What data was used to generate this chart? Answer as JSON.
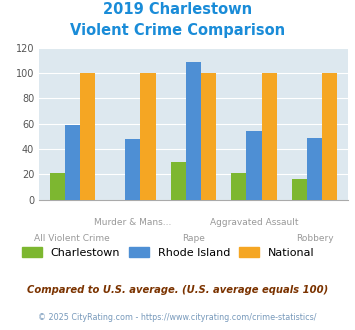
{
  "title_line1": "2019 Charlestown",
  "title_line2": "Violent Crime Comparison",
  "categories": [
    "All Violent Crime",
    "Murder & Mans...",
    "Rape",
    "Aggravated Assault",
    "Robbery"
  ],
  "top_labels": [
    "",
    "Murder & Mans...",
    "",
    "Aggravated Assault",
    ""
  ],
  "bot_labels": [
    "All Violent Crime",
    "",
    "Rape",
    "",
    "Robbery"
  ],
  "charlestown": [
    21,
    0,
    30,
    21,
    16
  ],
  "rhode_island": [
    59,
    48,
    109,
    54,
    49
  ],
  "national": [
    100,
    100,
    100,
    100,
    100
  ],
  "color_charlestown": "#7db730",
  "color_rhode_island": "#4e8fd4",
  "color_national": "#f5a623",
  "ylim": [
    0,
    120
  ],
  "yticks": [
    0,
    20,
    40,
    60,
    80,
    100,
    120
  ],
  "title_color": "#1a8cd8",
  "bg_color": "#dde8ef",
  "footnote1": "Compared to U.S. average. (U.S. average equals 100)",
  "footnote2": "© 2025 CityRating.com - https://www.cityrating.com/crime-statistics/",
  "footnote1_color": "#7b3300",
  "footnote2_color": "#7799bb"
}
